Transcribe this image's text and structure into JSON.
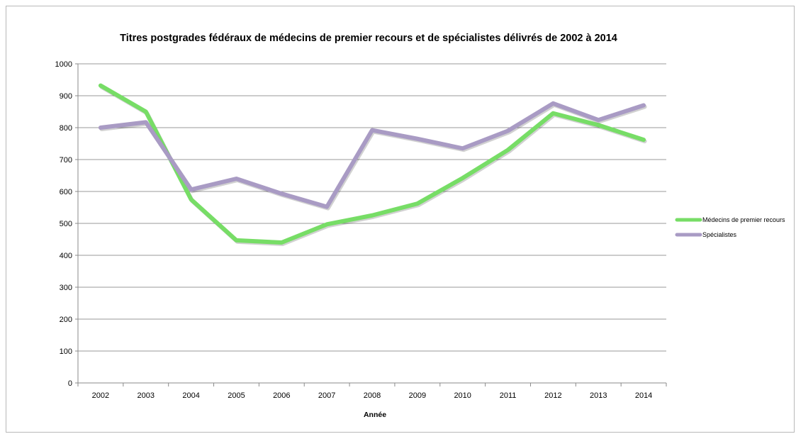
{
  "chart_data": {
    "type": "line",
    "title": "Titres postgrades fédéraux de médecins de premier recours et de spécialistes délivrés de 2002 à 2014",
    "xlabel": "Année",
    "ylabel": "",
    "categories": [
      "2002",
      "2003",
      "2004",
      "2005",
      "2006",
      "2007",
      "2008",
      "2009",
      "2010",
      "2011",
      "2012",
      "2013",
      "2014"
    ],
    "ylim": [
      0,
      1000
    ],
    "yticks": [
      0,
      100,
      200,
      300,
      400,
      500,
      600,
      700,
      800,
      900,
      1000
    ],
    "grid": true,
    "legend": "right",
    "series": [
      {
        "name": "Médecins de premier recours",
        "color": "#77dd66",
        "values": [
          932,
          850,
          575,
          447,
          440,
          497,
          525,
          562,
          642,
          730,
          845,
          808,
          762
        ]
      },
      {
        "name": "Spécialistes",
        "color": "#a99bc4",
        "values": [
          800,
          817,
          606,
          640,
          593,
          552,
          792,
          765,
          735,
          790,
          876,
          824,
          870
        ]
      }
    ]
  }
}
